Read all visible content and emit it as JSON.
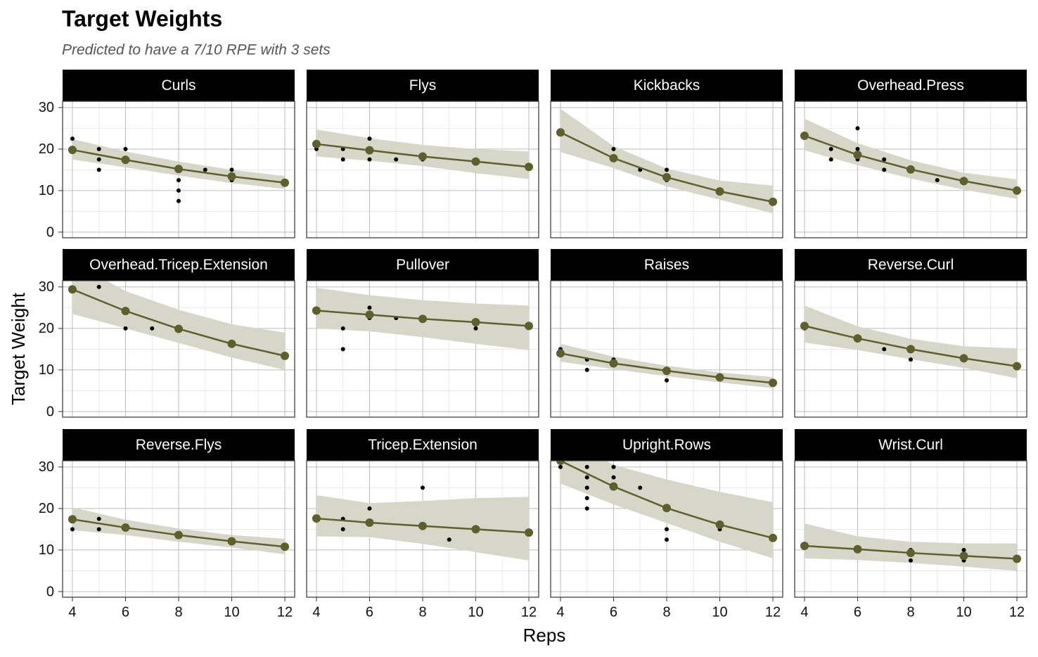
{
  "title": "Target Weights",
  "subtitle": "Predicted to have a 7/10 RPE with 3 sets",
  "xlabel": "Reps",
  "ylabel": "Target Weight",
  "axes": {
    "xlim": [
      3.63,
      12.37
    ],
    "ylim": [
      -1.36,
      31.5
    ],
    "xticks": [
      4,
      6,
      8,
      10,
      12
    ],
    "yticks": [
      0,
      10,
      20,
      30
    ],
    "xminor": [
      5,
      7,
      9,
      11
    ],
    "yminor": [
      5,
      15,
      25
    ],
    "grid": true
  },
  "colors": {
    "fit": "#5f5f2c",
    "ribbon": "#d6d7c8",
    "points": "#000000",
    "strip": "#000000"
  },
  "chart_data": [
    {
      "type": "line",
      "title": "Curls",
      "fit": {
        "x": [
          4,
          6,
          8,
          10,
          12
        ],
        "values": [
          19.8,
          17.4,
          15.2,
          13.4,
          11.9
        ],
        "upper": [
          22.4,
          19.4,
          17.0,
          15.0,
          13.5
        ],
        "lower": [
          17.5,
          15.6,
          13.6,
          11.8,
          10.4
        ]
      },
      "points": {
        "x": [
          4,
          4,
          5,
          5,
          5,
          6,
          6,
          8,
          8,
          8,
          8,
          9,
          10,
          10
        ],
        "values": [
          22.5,
          20,
          20,
          17.5,
          15,
          20,
          17.5,
          15,
          12.5,
          10,
          7.5,
          15,
          15,
          12.5
        ]
      }
    },
    {
      "type": "line",
      "title": "Flys",
      "fit": {
        "x": [
          4,
          6,
          8,
          10,
          12
        ],
        "values": [
          21.2,
          19.7,
          18.2,
          17.0,
          15.7
        ],
        "upper": [
          24.7,
          22.6,
          21.0,
          20.0,
          19.4
        ],
        "lower": [
          18.2,
          17.2,
          15.9,
          14.2,
          12.8
        ]
      },
      "points": {
        "x": [
          4,
          5,
          5,
          6,
          6,
          6,
          7,
          8
        ],
        "values": [
          20,
          20,
          17.5,
          22.5,
          20,
          17.5,
          17.5,
          17.5
        ]
      }
    },
    {
      "type": "line",
      "title": "Kickbacks",
      "fit": {
        "x": [
          4,
          6,
          8,
          10,
          12
        ],
        "values": [
          24.0,
          17.8,
          13.2,
          9.8,
          7.3
        ],
        "upper": [
          29.7,
          20.7,
          15.3,
          12.4,
          11.2
        ],
        "lower": [
          19.3,
          15.4,
          11.0,
          7.8,
          4.5
        ]
      },
      "points": {
        "x": [
          6,
          6,
          7,
          8,
          8
        ],
        "values": [
          20,
          17.5,
          15,
          15,
          12.5
        ]
      }
    },
    {
      "type": "line",
      "title": "Overhead.Press",
      "fit": {
        "x": [
          4,
          6,
          8,
          10,
          12
        ],
        "values": [
          23.2,
          18.6,
          15.1,
          12.3,
          10.0
        ],
        "upper": [
          27.3,
          21.4,
          17.3,
          14.3,
          12.7
        ],
        "lower": [
          19.7,
          16.1,
          12.9,
          10.2,
          8.0
        ]
      },
      "points": {
        "x": [
          5,
          5,
          6,
          6,
          6,
          7,
          7,
          8,
          9
        ],
        "values": [
          20,
          17.5,
          25,
          20,
          17.5,
          17.5,
          15,
          15,
          12.5
        ]
      }
    },
    {
      "type": "line",
      "title": "Overhead.Tricep.Extension",
      "fit": {
        "x": [
          4,
          6,
          8,
          10,
          12
        ],
        "values": [
          29.4,
          24.2,
          19.9,
          16.3,
          13.4
        ],
        "upper": [
          36,
          29,
          24.5,
          21,
          19
        ],
        "lower": [
          23.5,
          20,
          16.5,
          13,
          10
        ]
      },
      "points": {
        "x": [
          5,
          6,
          7,
          8
        ],
        "values": [
          30,
          20,
          20,
          20
        ]
      }
    },
    {
      "type": "line",
      "title": "Pullover",
      "fit": {
        "x": [
          4,
          6,
          8,
          10,
          12
        ],
        "values": [
          24.3,
          23.3,
          22.3,
          21.5,
          20.6
        ],
        "upper": [
          29.8,
          28.0,
          26.8,
          26.0,
          25.5
        ],
        "lower": [
          20.0,
          19.3,
          17.9,
          16.3,
          14.8
        ]
      },
      "points": {
        "x": [
          5,
          5,
          6,
          6,
          7,
          10
        ],
        "values": [
          20,
          15,
          25,
          22.5,
          22.5,
          20
        ]
      }
    },
    {
      "type": "line",
      "title": "Raises",
      "fit": {
        "x": [
          4,
          6,
          8,
          10,
          12
        ],
        "values": [
          14.0,
          11.6,
          9.8,
          8.2,
          6.9
        ],
        "upper": [
          16.3,
          13.2,
          11.0,
          9.4,
          8.3
        ],
        "lower": [
          12.0,
          10.2,
          8.5,
          7.0,
          5.6
        ]
      },
      "points": {
        "x": [
          4,
          5,
          5,
          6,
          8,
          8
        ],
        "values": [
          15,
          12.5,
          10,
          12.5,
          10,
          7.5
        ]
      }
    },
    {
      "type": "line",
      "title": "Reverse.Curl",
      "fit": {
        "x": [
          4,
          6,
          8,
          10,
          12
        ],
        "values": [
          20.6,
          17.6,
          15.0,
          12.8,
          10.9
        ],
        "upper": [
          25.5,
          20.5,
          17.5,
          15.7,
          15.2
        ],
        "lower": [
          16.6,
          14.8,
          12.6,
          10.5,
          8.0
        ]
      },
      "points": {
        "x": [
          4,
          7,
          8,
          8
        ],
        "values": [
          20,
          15,
          15,
          12.5
        ]
      }
    },
    {
      "type": "line",
      "title": "Reverse.Flys",
      "fit": {
        "x": [
          4,
          6,
          8,
          10,
          12
        ],
        "values": [
          17.4,
          15.4,
          13.6,
          12.1,
          10.8
        ],
        "upper": [
          20.3,
          17.3,
          15.2,
          13.6,
          12.7
        ],
        "lower": [
          14.8,
          13.6,
          12.0,
          10.6,
          9.0
        ]
      },
      "points": {
        "x": [
          4,
          4,
          5,
          5,
          10
        ],
        "values": [
          17.5,
          15,
          17.5,
          15,
          12.5
        ]
      }
    },
    {
      "type": "line",
      "title": "Tricep.Extension",
      "fit": {
        "x": [
          4,
          6,
          8,
          10,
          12
        ],
        "values": [
          17.6,
          16.6,
          15.8,
          15.0,
          14.2
        ],
        "upper": [
          23.2,
          21.3,
          21.8,
          22.5,
          22.8
        ],
        "lower": [
          13.3,
          13.1,
          11.5,
          9.5,
          7.5
        ]
      },
      "points": {
        "x": [
          5,
          5,
          6,
          8,
          9,
          10
        ],
        "values": [
          17.5,
          15,
          20,
          25,
          12.5,
          15
        ]
      }
    },
    {
      "type": "line",
      "title": "Upright.Rows",
      "fit": {
        "x": [
          4,
          6,
          8,
          10,
          12
        ],
        "values": [
          31.5,
          25.3,
          20.1,
          16.1,
          12.9
        ],
        "upper": [
          38,
          30.5,
          27,
          24,
          21.5
        ],
        "lower": [
          26,
          21,
          16.5,
          12,
          8
        ]
      },
      "points": {
        "x": [
          4,
          5,
          5,
          5,
          5,
          5,
          6,
          6,
          7,
          8,
          8,
          10
        ],
        "values": [
          30,
          30,
          27.5,
          25,
          22.5,
          20,
          30,
          27.5,
          25,
          15,
          12.5,
          15
        ]
      }
    },
    {
      "type": "line",
      "title": "Wrist.Curl",
      "fit": {
        "x": [
          4,
          6,
          8,
          10,
          12
        ],
        "values": [
          11.0,
          10.2,
          9.3,
          8.6,
          7.9
        ],
        "upper": [
          16.4,
          13.3,
          12.0,
          11.6,
          11.6
        ],
        "lower": [
          8.0,
          7.6,
          6.9,
          6.0,
          5.0
        ]
      },
      "points": {
        "x": [
          8,
          8,
          10,
          10
        ],
        "values": [
          10,
          7.5,
          10,
          7.5
        ]
      }
    }
  ]
}
